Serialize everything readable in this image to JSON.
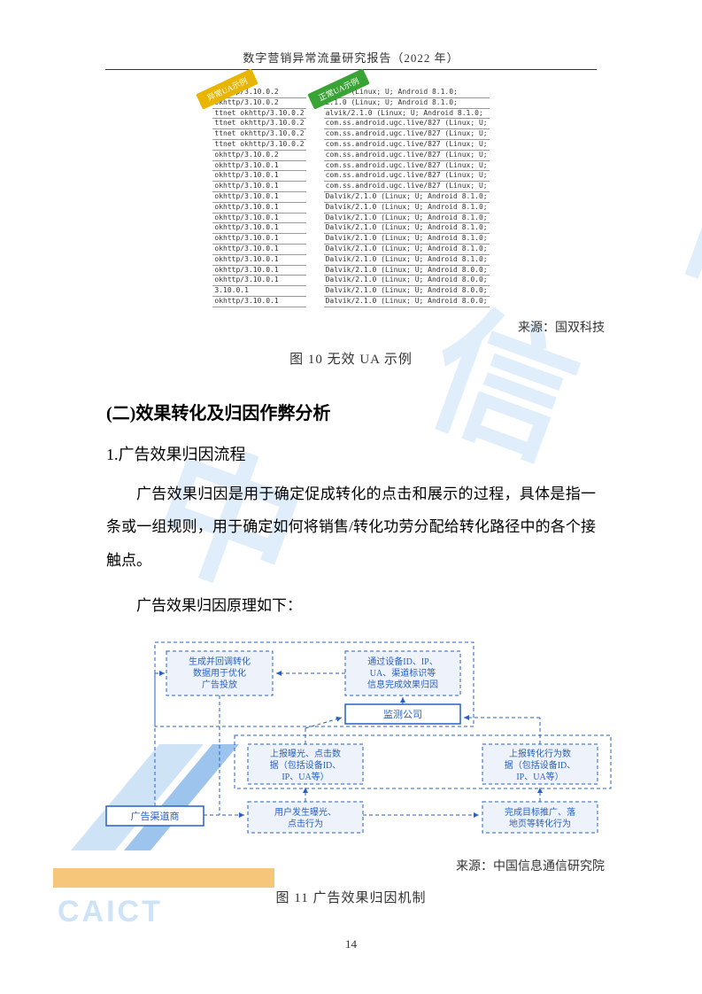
{
  "header": {
    "title": "数字营销异常流量研究报告（2022 年）"
  },
  "ua_demo": {
    "left_badge": "异常UA示例",
    "right_badge": "正常UA示例",
    "left_rows": [
      "okhttp/3.10.0.2",
      "okhttp/3.10.0.2",
      "ttnet okhttp/3.10.0.2",
      "ttnet okhttp/3.10.0.2",
      "ttnet okhttp/3.10.0.2",
      "ttnet okhttp/3.10.0.2",
      "okhttp/3.10.0.2",
      "okhttp/3.10.0.1",
      "okhttp/3.10.0.1",
      "okhttp/3.10.0.1",
      "okhttp/3.10.0.1",
      "okhttp/3.10.0.1",
      "okhttp/3.10.0.1",
      "okhttp/3.10.0.1",
      "okhttp/3.10.0.1",
      "okhttp/3.10.0.1",
      "okhttp/3.10.0.1",
      "okhttp/3.10.0.1",
      "okhttp/3.10.0.1",
      "3.10.0.1",
      "okhttp/3.10.0.1"
    ],
    "right_rows": [
      "2.1.0 (Linux; U; Android 8.1.0;",
      "2.1.0 (Linux; U; Android 8.1.0;",
      "alvik/2.1.0 (Linux; U; Android 8.1.0;",
      "com.ss.android.ugc.live/827 (Linux; U;",
      "com.ss.android.ugc.live/827 (Linux; U;",
      "com.ss.android.ugc.live/827 (Linux; U;",
      "com.ss.android.ugc.live/827 (Linux; U;",
      "com.ss.android.ugc.live/827 (Linux; U;",
      "com.ss.android.ugc.live/827 (Linux; U;",
      "com.ss.android.ugc.live/827 (Linux; U;",
      "Dalvik/2.1.0 (Linux; U; Android 8.1.0;",
      "Dalvik/2.1.0 (Linux; U; Android 8.1.0;",
      "Dalvik/2.1.0 (Linux; U; Android 8.1.0;",
      "Dalvik/2.1.0 (Linux; U; Android 8.1.0;",
      "Dalvik/2.1.0 (Linux; U; Android 8.1.0;",
      "Dalvik/2.1.0 (Linux; U; Android 8.1.0;",
      "Dalvik/2.1.0 (Linux; U; Android 8.1.0;",
      "Dalvik/2.1.0 (Linux; U; Android 8.0.0;",
      "Dalvik/2.1.0 (Linux; U; Android 8.0.0;",
      "Dalvik/2.1.0 (Linux; U; Android 8.0.0;",
      "Dalvik/2.1.0 (Linux; U; Android 8.0.0;"
    ],
    "source": "来源：国双科技",
    "caption": "图 10 无效 UA 示例"
  },
  "sections": {
    "h2": "(二)效果转化及归因作弊分析",
    "h3": "1.广告效果归因流程",
    "p1": "广告效果归因是用于确定促成转化的点击和展示的过程，具体是指一条或一组规则，用于确定如何将销售/转化功劳分配给转化路径中的各个接触点。",
    "p2": "广告效果归因原理如下："
  },
  "flowchart": {
    "nodes": {
      "n1": "生成并回调转化\n数据用于优化\n广告投放",
      "n2": "通过设备ID、IP、\nUA、渠道标识等\n信息完成效果归因",
      "n3": "监测公司",
      "n4": "上报曝光、点击数\n据（包括设备ID、\nIP、UA等）",
      "n5": "上报转化行为数\n据（包括设备ID、\nIP、UA等）",
      "n6": "广告渠道商",
      "n7": "用户发生曝光、\n点击行为",
      "n8": "完成目标推广、落\n地页等转化行为"
    },
    "colors": {
      "border": "#2860c5",
      "fill": "#eef3fb",
      "solid_fill": "#ffffff",
      "text": "#2860c5"
    },
    "source": "来源：中国信息通信研究院",
    "caption": "图 11 广告效果归因机制"
  },
  "pageNumber": "14"
}
